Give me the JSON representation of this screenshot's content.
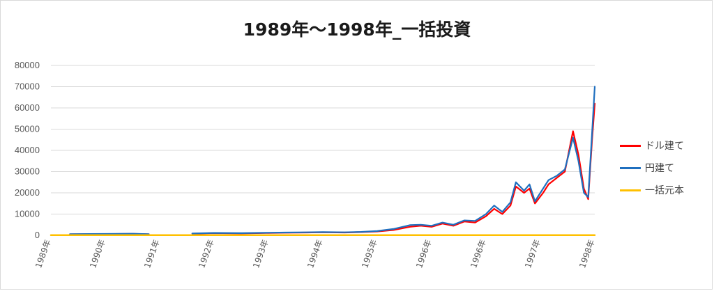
{
  "chart_data": {
    "type": "line",
    "title": "1989年～1998年_一括投資",
    "ylim": [
      0,
      80000
    ],
    "yticks": [
      "80000",
      "70000",
      "60000",
      "50000",
      "40000",
      "30000",
      "20000",
      "10000",
      "0"
    ],
    "xticks": [
      "1989年",
      "1990年",
      "1991年",
      "1992年",
      "1993年",
      "1994年",
      "1995年",
      "1996年",
      "1996年",
      "1997年",
      "1998年"
    ],
    "xtick_positions": [
      0,
      1,
      2,
      3,
      4,
      5,
      6,
      7,
      8,
      9,
      10
    ],
    "xlim": [
      0,
      10
    ],
    "grid": "horizontal",
    "legend_position": "right",
    "series": [
      {
        "name": "ドル建て",
        "color": "#ff0000",
        "x": [
          0,
          0.35,
          1.0,
          1.5,
          1.8,
          2.0,
          2.6,
          3.0,
          3.5,
          4.0,
          4.3,
          4.7,
          5.0,
          5.4,
          5.7,
          6.0,
          6.3,
          6.6,
          6.8,
          7.0,
          7.2,
          7.4,
          7.6,
          7.8,
          8.0,
          8.15,
          8.3,
          8.45,
          8.55,
          8.7,
          8.8,
          8.9,
          9.05,
          9.15,
          9.3,
          9.45,
          9.6,
          9.7,
          9.8,
          9.88,
          9.95,
          10.0
        ],
        "y": [
          null,
          500,
          600,
          700,
          500,
          null,
          800,
          1000,
          900,
          1100,
          1200,
          1300,
          1400,
          1300,
          1500,
          1800,
          2500,
          4000,
          4500,
          4000,
          5500,
          4500,
          6500,
          6000,
          9000,
          12500,
          10000,
          14000,
          23000,
          20000,
          22000,
          15000,
          20000,
          24000,
          27000,
          30000,
          49000,
          38000,
          22000,
          17000,
          45000,
          62000
        ]
      },
      {
        "name": "円建て",
        "color": "#1f6fbf",
        "x": [
          0,
          0.35,
          1.0,
          1.5,
          1.8,
          2.0,
          2.6,
          3.0,
          3.5,
          4.0,
          4.3,
          4.7,
          5.0,
          5.4,
          5.7,
          6.0,
          6.3,
          6.6,
          6.8,
          7.0,
          7.2,
          7.4,
          7.6,
          7.8,
          8.0,
          8.15,
          8.3,
          8.45,
          8.55,
          8.7,
          8.8,
          8.9,
          9.05,
          9.15,
          9.3,
          9.45,
          9.6,
          9.7,
          9.8,
          9.88,
          9.95,
          10.0
        ],
        "y": [
          null,
          550,
          650,
          750,
          550,
          null,
          850,
          1100,
          1000,
          1200,
          1300,
          1400,
          1500,
          1400,
          1600,
          2000,
          3000,
          4800,
          5000,
          4500,
          6000,
          5000,
          7000,
          6800,
          10000,
          14000,
          11000,
          15500,
          25000,
          21000,
          24000,
          16000,
          22000,
          26000,
          28000,
          31000,
          46000,
          35000,
          20000,
          18000,
          48000,
          70000
        ]
      },
      {
        "name": "一括元本",
        "color": "#ffc000",
        "x": [
          0,
          10
        ],
        "y": [
          100,
          100
        ]
      }
    ]
  }
}
